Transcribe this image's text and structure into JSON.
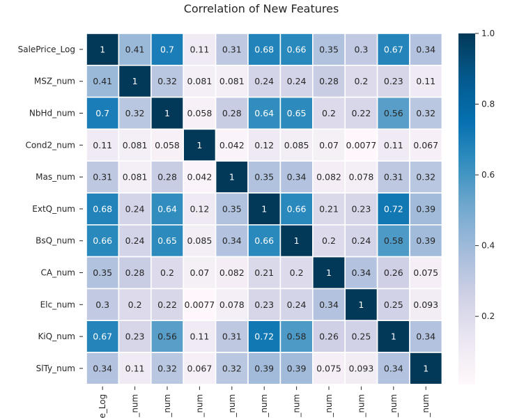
{
  "chart_data": {
    "type": "heatmap",
    "title": "Correlation of New Features",
    "row_labels": [
      "SalePrice_Log",
      "MSZ_num",
      "NbHd_num",
      "Cond2_num",
      "Mas_num",
      "ExtQ_num",
      "BsQ_num",
      "CA_num",
      "Elc_num",
      "KiQ_num",
      "SlTy_num"
    ],
    "col_labels": [
      "e_Log",
      "_num",
      "_num",
      "_num",
      "_num",
      "_num",
      "_num",
      "_num",
      "_num",
      "_num",
      "_num"
    ],
    "values": [
      [
        1,
        0.41,
        0.7,
        0.11,
        0.31,
        0.68,
        0.66,
        0.35,
        0.3,
        0.67,
        0.34
      ],
      [
        0.41,
        1,
        0.32,
        0.081,
        0.081,
        0.24,
        0.24,
        0.28,
        0.2,
        0.23,
        0.11
      ],
      [
        0.7,
        0.32,
        1,
        0.058,
        0.28,
        0.64,
        0.65,
        0.2,
        0.22,
        0.56,
        0.32
      ],
      [
        0.11,
        0.081,
        0.058,
        1,
        0.042,
        0.12,
        0.085,
        0.07,
        0.0077,
        0.11,
        0.067
      ],
      [
        0.31,
        0.081,
        0.28,
        0.042,
        1,
        0.35,
        0.34,
        0.082,
        0.078,
        0.31,
        0.32
      ],
      [
        0.68,
        0.24,
        0.64,
        0.12,
        0.35,
        1,
        0.66,
        0.21,
        0.23,
        0.72,
        0.39
      ],
      [
        0.66,
        0.24,
        0.65,
        0.085,
        0.34,
        0.66,
        1,
        0.2,
        0.24,
        0.58,
        0.39
      ],
      [
        0.35,
        0.28,
        0.2,
        0.07,
        0.082,
        0.21,
        0.2,
        1,
        0.34,
        0.26,
        0.075
      ],
      [
        0.3,
        0.2,
        0.22,
        0.0077,
        0.078,
        0.23,
        0.24,
        0.34,
        1,
        0.25,
        0.093
      ],
      [
        0.67,
        0.23,
        0.56,
        0.11,
        0.31,
        0.72,
        0.58,
        0.26,
        0.25,
        1,
        0.34
      ],
      [
        0.34,
        0.11,
        0.32,
        0.067,
        0.32,
        0.39,
        0.39,
        0.075,
        0.093,
        0.34,
        1
      ]
    ],
    "value_labels": [
      [
        "1",
        "0.41",
        "0.7",
        "0.11",
        "0.31",
        "0.68",
        "0.66",
        "0.35",
        "0.3",
        "0.67",
        "0.34"
      ],
      [
        "0.41",
        "1",
        "0.32",
        "0.081",
        "0.081",
        "0.24",
        "0.24",
        "0.28",
        "0.2",
        "0.23",
        "0.11"
      ],
      [
        "0.7",
        "0.32",
        "1",
        "0.058",
        "0.28",
        "0.64",
        "0.65",
        "0.2",
        "0.22",
        "0.56",
        "0.32"
      ],
      [
        "0.11",
        "0.081",
        "0.058",
        "1",
        "0.042",
        "0.12",
        "0.085",
        "0.07",
        "0.0077",
        "0.11",
        "0.067"
      ],
      [
        "0.31",
        "0.081",
        "0.28",
        "0.042",
        "1",
        "0.35",
        "0.34",
        "0.082",
        "0.078",
        "0.31",
        "0.32"
      ],
      [
        "0.68",
        "0.24",
        "0.64",
        "0.12",
        "0.35",
        "1",
        "0.66",
        "0.21",
        "0.23",
        "0.72",
        "0.39"
      ],
      [
        "0.66",
        "0.24",
        "0.65",
        "0.085",
        "0.34",
        "0.66",
        "1",
        "0.2",
        "0.24",
        "0.58",
        "0.39"
      ],
      [
        "0.35",
        "0.28",
        "0.2",
        "0.07",
        "0.082",
        "0.21",
        "0.2",
        "1",
        "0.34",
        "0.26",
        "0.075"
      ],
      [
        "0.3",
        "0.2",
        "0.22",
        "0.0077",
        "0.078",
        "0.23",
        "0.24",
        "0.34",
        "1",
        "0.25",
        "0.093"
      ],
      [
        "0.67",
        "0.23",
        "0.56",
        "0.11",
        "0.31",
        "0.72",
        "0.58",
        "0.26",
        "0.25",
        "1",
        "0.34"
      ],
      [
        "0.34",
        "0.11",
        "0.32",
        "0.067",
        "0.32",
        "0.39",
        "0.39",
        "0.075",
        "0.093",
        "0.34",
        "1"
      ]
    ],
    "colormap": "PuBu",
    "vmin": 0.0077,
    "vmax": 1.0,
    "colorbar_ticks": [
      0.2,
      0.4,
      0.6,
      0.8,
      1.0
    ],
    "colorbar_tick_labels": [
      "0.2",
      "0.4",
      "0.6",
      "0.8",
      "1.0"
    ],
    "colors": {
      "low": "#f6eff7",
      "high": "#023858",
      "text_dark": "#262626",
      "text_light": "#ffffff",
      "grid": "#ffffff"
    }
  }
}
